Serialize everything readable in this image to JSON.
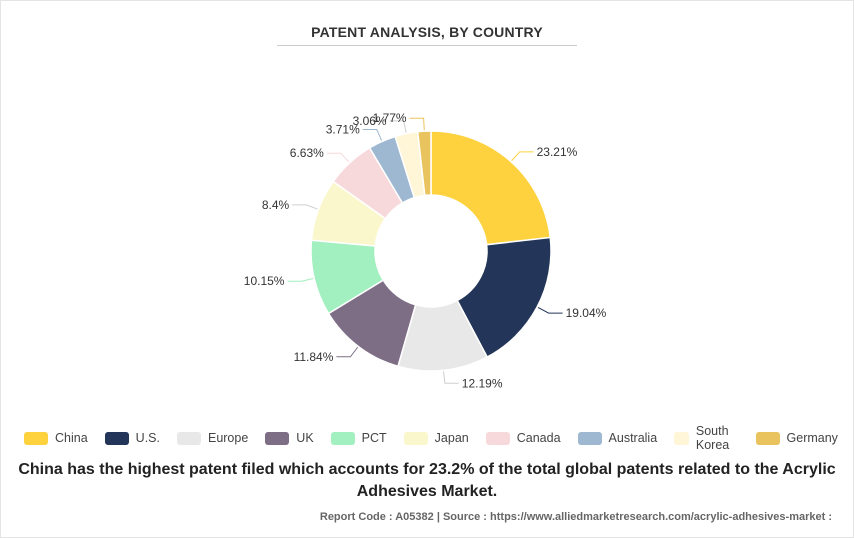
{
  "title": "PATENT ANALYSIS, BY COUNTRY",
  "caption": "China has the highest patent filed which accounts for 23.2% of the total global patents related to the Acrylic Adhesives Market.",
  "source": "Report Code : A05382  |  Source : https://www.alliedmarketresearch.com/acrylic-adhesives-market :",
  "chart_data": {
    "type": "pie",
    "donut": true,
    "title": "PATENT ANALYSIS, BY COUNTRY",
    "legend_position": "bottom",
    "series": [
      {
        "name": "China",
        "value": 23.21,
        "label": "23.21%",
        "color": "#FDD23E"
      },
      {
        "name": "U.S.",
        "value": 19.04,
        "label": "19.04%",
        "color": "#233558"
      },
      {
        "name": "Europe",
        "value": 12.19,
        "label": "12.19%",
        "color": "#E8E8E8"
      },
      {
        "name": "UK",
        "value": 11.84,
        "label": "11.84%",
        "color": "#7D6E86"
      },
      {
        "name": "PCT",
        "value": 10.15,
        "label": "10.15%",
        "color": "#A2EFBF"
      },
      {
        "name": "Japan",
        "value": 8.4,
        "label": "8.4%",
        "color": "#FBF7CD"
      },
      {
        "name": "Canada",
        "value": 6.63,
        "label": "6.63%",
        "color": "#F8D9DB"
      },
      {
        "name": "Australia",
        "value": 3.71,
        "label": "3.71%",
        "color": "#9DB8D0"
      },
      {
        "name": "South Korea",
        "value": 3.06,
        "label": "3.06%",
        "color": "#FEF6D6"
      },
      {
        "name": "Germany",
        "value": 1.77,
        "label": "1.77%",
        "color": "#E9C35D"
      }
    ]
  }
}
